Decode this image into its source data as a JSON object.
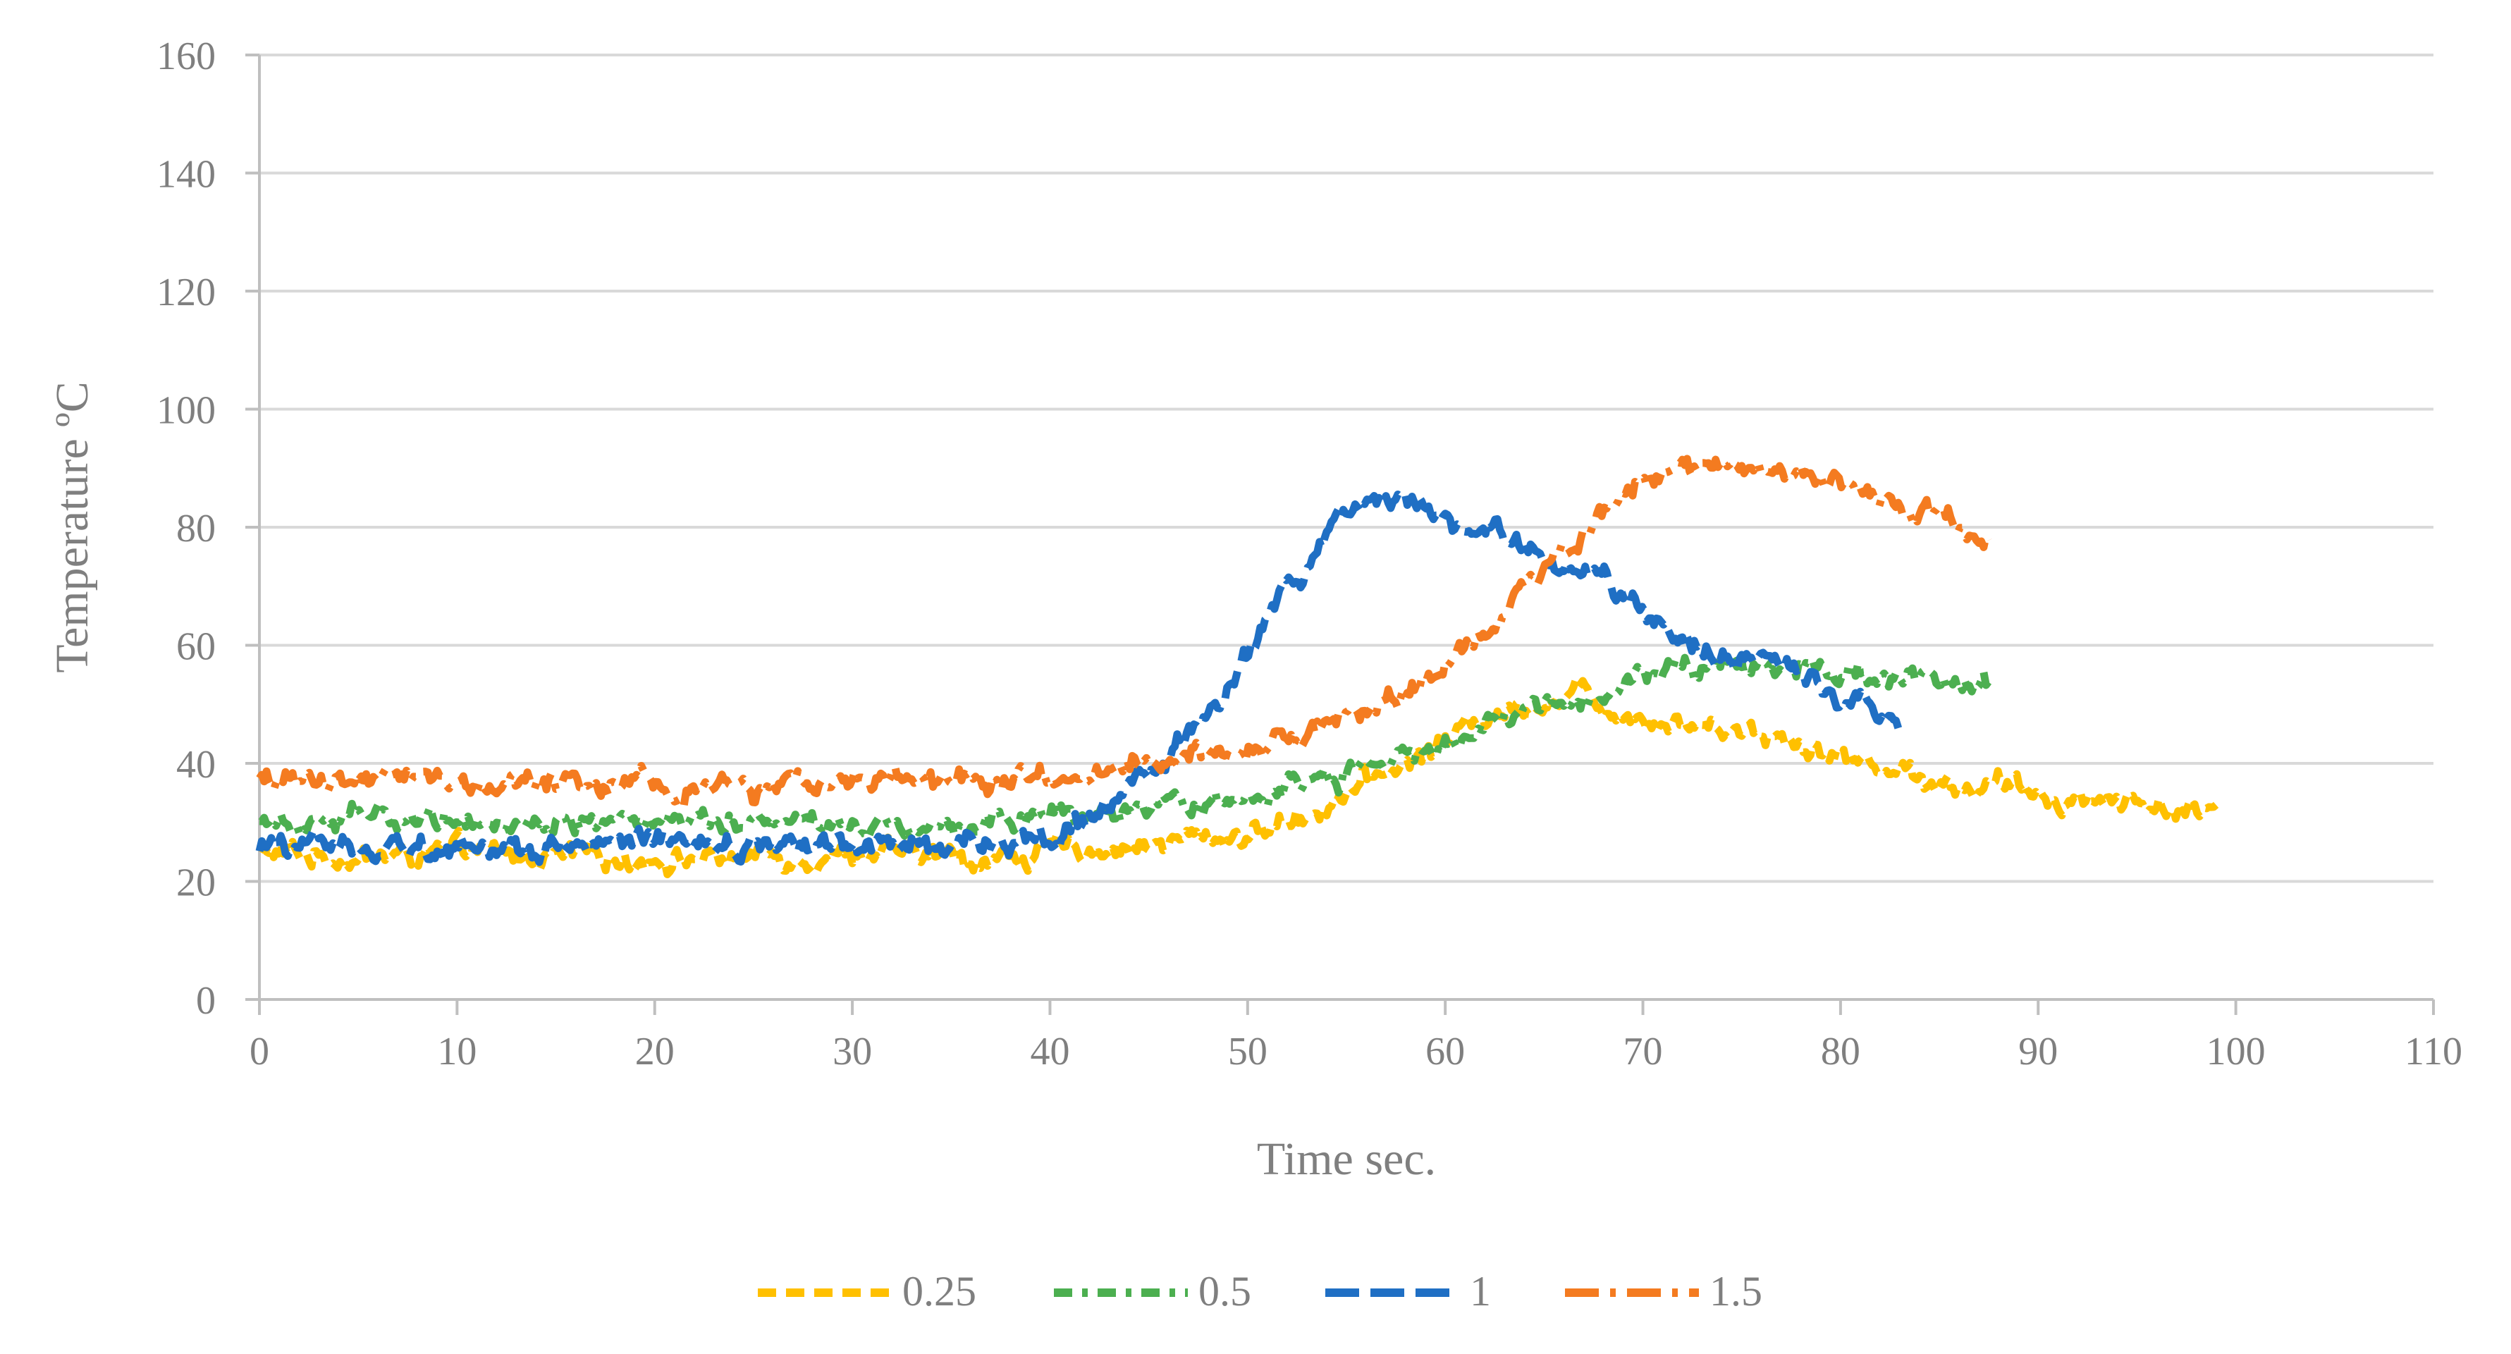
{
  "chart_data": {
    "type": "line",
    "title": "",
    "xlabel": "Time sec.",
    "ylabel": "Temperature ºC",
    "xlim": [
      0,
      110
    ],
    "ylim": [
      0,
      160
    ],
    "xticks": [
      0,
      10,
      20,
      30,
      40,
      50,
      60,
      70,
      80,
      90,
      100,
      110
    ],
    "yticks": [
      0,
      20,
      40,
      60,
      80,
      100,
      120,
      140,
      160
    ],
    "grid": "horizontal",
    "legend_position": "bottom",
    "series": [
      {
        "name": "0.25",
        "color": "#FFC000",
        "dash": "dash",
        "x": [
          0,
          5,
          10,
          15,
          20,
          25,
          30,
          35,
          38,
          40,
          43,
          45,
          47,
          50,
          52,
          55,
          58,
          60,
          62,
          65,
          67,
          68,
          70,
          72,
          75,
          78,
          80,
          82,
          84,
          86,
          88,
          90,
          92,
          94,
          96,
          98,
          99
        ],
        "y": [
          25,
          24,
          25,
          24,
          24,
          24,
          25,
          24,
          24,
          25,
          26,
          26,
          27,
          28,
          30,
          35,
          40,
          44,
          48,
          51,
          52,
          50,
          48,
          47,
          46,
          44,
          41,
          40,
          38,
          36,
          36,
          35,
          34,
          34,
          33,
          32,
          31
        ]
      },
      {
        "name": "0.5",
        "color": "#4CAF50",
        "dash": "dashdot",
        "x": [
          0,
          5,
          10,
          15,
          20,
          25,
          30,
          35,
          38,
          40,
          43,
          45,
          48,
          50,
          55,
          58,
          60,
          63,
          65,
          68,
          70,
          73,
          75,
          78,
          80,
          83,
          85,
          87.5
        ],
        "y": [
          31,
          31,
          31,
          30,
          31,
          31,
          30,
          30,
          31,
          31,
          31,
          31,
          33,
          34,
          38,
          41,
          43,
          47,
          50,
          52,
          55,
          57,
          57,
          57,
          56,
          55,
          54,
          53
        ]
      },
      {
        "name": "1",
        "color": "#1F6FC4",
        "dash": "longdash",
        "x": [
          0,
          5,
          10,
          15,
          20,
          25,
          30,
          35,
          38,
          40,
          42,
          44,
          46,
          48,
          50,
          52,
          54,
          55,
          57,
          58.5,
          60,
          62,
          64,
          66,
          68,
          70,
          72,
          74,
          76,
          78,
          80,
          82,
          83
        ],
        "y": [
          26,
          26,
          26,
          26,
          26,
          26,
          26,
          26,
          27,
          28,
          31,
          35,
          40,
          48,
          58,
          70,
          78,
          83,
          82,
          84,
          81,
          80,
          77,
          73,
          70,
          66,
          62,
          58,
          57,
          55,
          52,
          49,
          48
        ]
      },
      {
        "name": "1.5",
        "color": "#F47B20",
        "dash": "longdashdot",
        "x": [
          0,
          5,
          7.5,
          10,
          15,
          20,
          25,
          30,
          35,
          38,
          40,
          43,
          45,
          48,
          50,
          53,
          55,
          58,
          60,
          62,
          64,
          66,
          68,
          70,
          72,
          73.5,
          75,
          78,
          80,
          82,
          84,
          86,
          87.5
        ],
        "y": [
          37,
          37,
          38,
          36,
          37,
          37,
          36,
          37,
          36,
          37,
          37,
          39,
          40,
          41,
          42,
          45,
          48,
          52,
          57,
          62,
          70,
          77,
          83,
          88,
          89,
          90,
          89,
          88,
          87,
          85,
          83,
          80,
          77
        ]
      }
    ]
  }
}
